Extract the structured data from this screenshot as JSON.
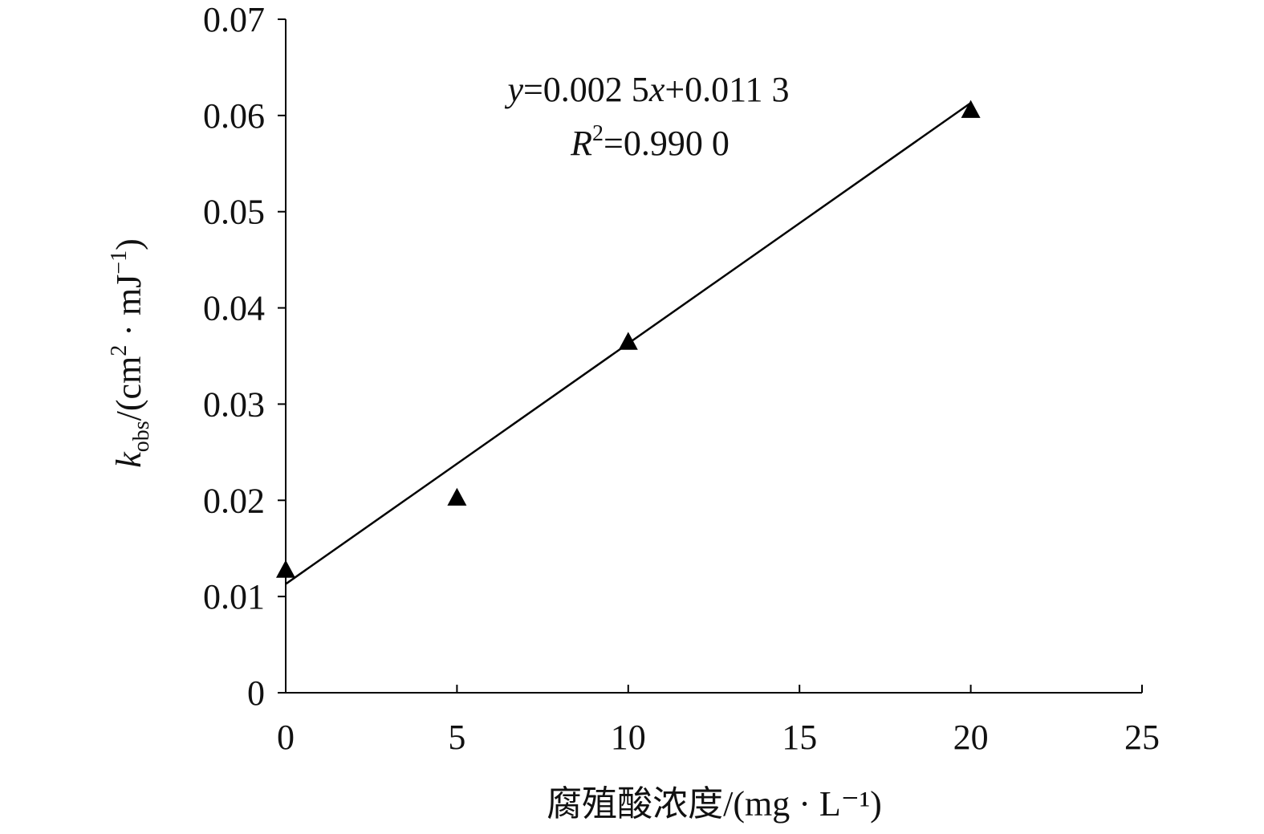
{
  "chart_data": {
    "type": "scatter",
    "x": [
      0,
      5,
      10,
      20
    ],
    "y": [
      0.0128,
      0.0203,
      0.0365,
      0.0606
    ],
    "marker": "triangle",
    "xlim": [
      0,
      25
    ],
    "ylim": [
      0,
      0.07
    ],
    "xticks": [
      "0",
      "5",
      "10",
      "15",
      "20",
      "25"
    ],
    "yticks": [
      "0",
      "0.01",
      "0.02",
      "0.03",
      "0.04",
      "0.05",
      "0.06",
      "0.07"
    ],
    "xlabel": "腐殖酸浓度/(mg · L⁻¹)",
    "ylabel": {
      "k": "k",
      "sub": "obs",
      "unit_pre": "/(cm",
      "sup1": "2",
      "unit_mid": " · mJ",
      "sup2": "−1",
      "unit_post": ")"
    },
    "fit": {
      "slope": 0.0025,
      "intercept": 0.0113,
      "range": [
        0,
        20
      ],
      "equation": {
        "y": "y",
        "part1": "=0.002 5",
        "x": "x",
        "part2": "+0.011 3"
      },
      "r2": {
        "R": "R",
        "sup": "2",
        "value": "=0.990 0"
      }
    },
    "grid": false,
    "legend": "none",
    "color": "#000000"
  }
}
